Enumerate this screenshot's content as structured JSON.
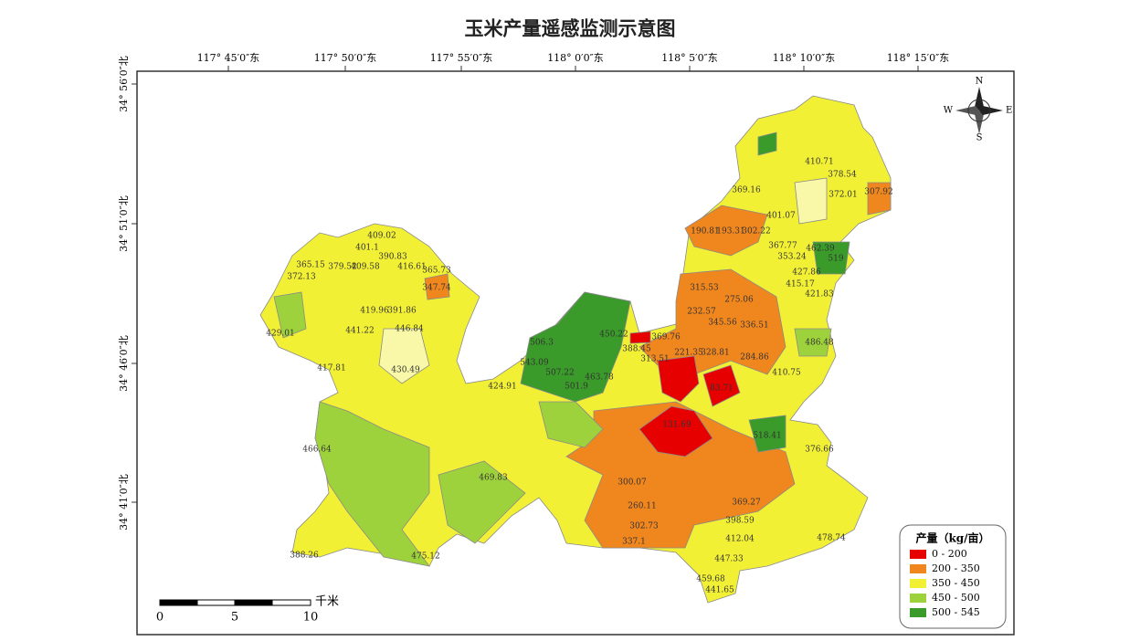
{
  "title": "玉米产量遥感监测示意图",
  "top_labels": [
    "117° 45′0″东",
    "117° 50′0″东",
    "117° 55′0″东",
    "118° 0′0″东",
    "118° 5′0″东",
    "118° 10′0″东",
    "118° 15′0″东"
  ],
  "left_labels": [
    "34° 56′0″北",
    "34° 51′0″北",
    "34° 46′0″北",
    "34° 41′0″北"
  ],
  "compass": {
    "n": "N",
    "e": "E",
    "s": "S",
    "w": "W"
  },
  "legend": {
    "title": "产量（kg/亩）",
    "items": [
      {
        "label": "0 - 200",
        "color": "#e60000"
      },
      {
        "label": "200 - 350",
        "color": "#f0861e"
      },
      {
        "label": "350 - 450",
        "color": "#f2f035"
      },
      {
        "label": "450 - 500",
        "color": "#9ed23c"
      },
      {
        "label": "500 - 545",
        "color": "#3a9a2a"
      }
    ]
  },
  "scale_bar": {
    "ticks": [
      "0",
      "5",
      "10"
    ],
    "unit": "千米"
  },
  "region_labels": [
    "409.02",
    "401.1",
    "390.83",
    "365.15",
    "379.52",
    "409.58",
    "416.61",
    "365.73",
    "372.13",
    "347.74",
    "419.96",
    "391.86",
    "429.01",
    "441.22",
    "446.84",
    "417.81",
    "430.49",
    "466.64",
    "469.83",
    "424.91",
    "506.3",
    "543.09",
    "507.22",
    "501.9",
    "463.78",
    "450.22",
    "388.45",
    "369.76",
    "313.51",
    "221.35",
    "328.81",
    "190.81",
    "193.31",
    "302.22",
    "315.53",
    "275.06",
    "232.57",
    "345.56",
    "336.51",
    "284.86",
    "83.71",
    "131.69",
    "518.41",
    "462.39",
    "519",
    "486.48",
    "410.75",
    "300.07",
    "260.11",
    "302.73",
    "337.1",
    "447.33",
    "441.65",
    "459.68",
    "475.12",
    "388.26",
    "307.92",
    "372.01",
    "378.54",
    "410.71",
    "369.16",
    "401.07",
    "367.77",
    "353.24",
    "427.86",
    "421.83",
    "415.17",
    "398.59",
    "369.27",
    "412.04",
    "376.66",
    "478.74"
  ]
}
